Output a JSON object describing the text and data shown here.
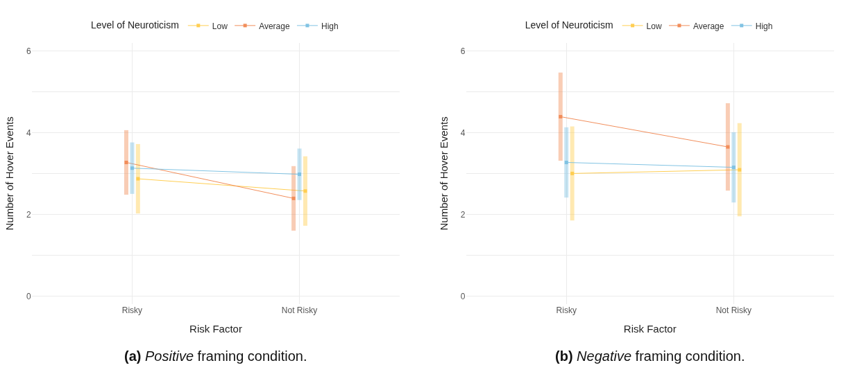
{
  "chart_data": [
    {
      "type": "line",
      "xlabel": "Risk Factor",
      "ylabel": "Number of Hover Events",
      "legend_title": "Level of Neuroticism",
      "legend": "top",
      "grid": true,
      "marker": "square",
      "categories": [
        "Risky",
        "Not Risky"
      ],
      "ylim": [
        -0.2,
        6.2
      ],
      "yticks": [
        0,
        {
          "value": 1,
          "label": null
        },
        2,
        {
          "value": 3,
          "label": null
        },
        4,
        {
          "value": 5,
          "label": null
        },
        6
      ],
      "series": [
        {
          "name": "Low",
          "color": "#ffc940",
          "values": [
            2.87,
            2.57
          ],
          "errors": [
            0.85,
            0.85
          ]
        },
        {
          "name": "Average",
          "color": "#f0824a",
          "values": [
            3.27,
            2.39
          ],
          "errors": [
            0.79,
            0.79
          ]
        },
        {
          "name": "High",
          "color": "#74bde0",
          "values": [
            3.13,
            2.98
          ],
          "errors": [
            0.63,
            0.63
          ]
        }
      ],
      "annotations": [
        "(a) Positive framing condition."
      ]
    },
    {
      "type": "line",
      "xlabel": "Risk Factor",
      "ylabel": "Number of Hover Events",
      "legend_title": "Level of Neuroticism",
      "legend": "top",
      "grid": true,
      "marker": "square",
      "categories": [
        "Risky",
        "Not Risky"
      ],
      "ylim": [
        -0.2,
        6.2
      ],
      "yticks": [
        0,
        {
          "value": 1,
          "label": null
        },
        2,
        {
          "value": 3,
          "label": null
        },
        4,
        {
          "value": 5,
          "label": null
        },
        6
      ],
      "series": [
        {
          "name": "Low",
          "color": "#ffc940",
          "values": [
            3.0,
            3.09
          ],
          "errors": [
            1.15,
            1.14
          ]
        },
        {
          "name": "Average",
          "color": "#f0824a",
          "values": [
            4.39,
            3.65
          ],
          "errors": [
            1.08,
            1.07
          ]
        },
        {
          "name": "High",
          "color": "#74bde0",
          "values": [
            3.27,
            3.15
          ],
          "errors": [
            0.86,
            0.86
          ]
        }
      ],
      "annotations": [
        "(b) Negative framing condition."
      ]
    }
  ]
}
